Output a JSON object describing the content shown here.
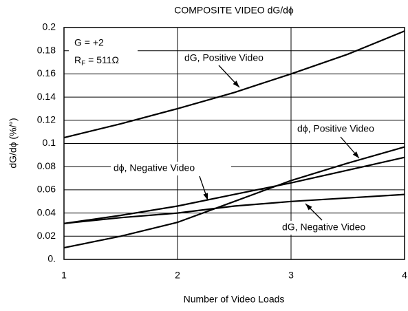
{
  "chart_data": {
    "type": "line",
    "title": "COMPOSITE VIDEO dG/dϕ",
    "xlabel": "Number of Video Loads",
    "ylabel": "dG/dϕ (%/°)",
    "annotations": {
      "gain": "G = +2",
      "rf": {
        "base": "R",
        "sub": "F",
        "rest": " = 511Ω"
      }
    },
    "x": [
      1,
      1.5,
      2,
      2.5,
      3,
      3.5,
      4
    ],
    "series": [
      {
        "name": "dG, Positive Video",
        "color": "#000000",
        "values": [
          0.105,
          0.117,
          0.13,
          0.144,
          0.16,
          0.177,
          0.197
        ]
      },
      {
        "name": "dϕ, Positive Video",
        "color": "#000000",
        "values": [
          0.01,
          0.02,
          0.032,
          0.05,
          0.068,
          0.083,
          0.097
        ]
      },
      {
        "name": "dϕ, Negative Video",
        "color": "#000000",
        "values": [
          0.031,
          0.038,
          0.046,
          0.056,
          0.066,
          0.077,
          0.088
        ]
      },
      {
        "name": "dG, Negative Video",
        "color": "#000000",
        "values": [
          0.031,
          0.036,
          0.04,
          0.046,
          0.05,
          0.053,
          0.056
        ]
      }
    ],
    "xlim": [
      1,
      4
    ],
    "xticks": [
      1,
      2,
      3,
      4
    ],
    "ylim": [
      0,
      0.2
    ],
    "yticks": [
      {
        "value": 0,
        "label": "0."
      },
      0.02,
      0.04,
      0.06,
      0.08,
      0.1,
      0.12,
      0.14,
      0.16,
      0.18,
      0.2
    ],
    "grid": true
  }
}
